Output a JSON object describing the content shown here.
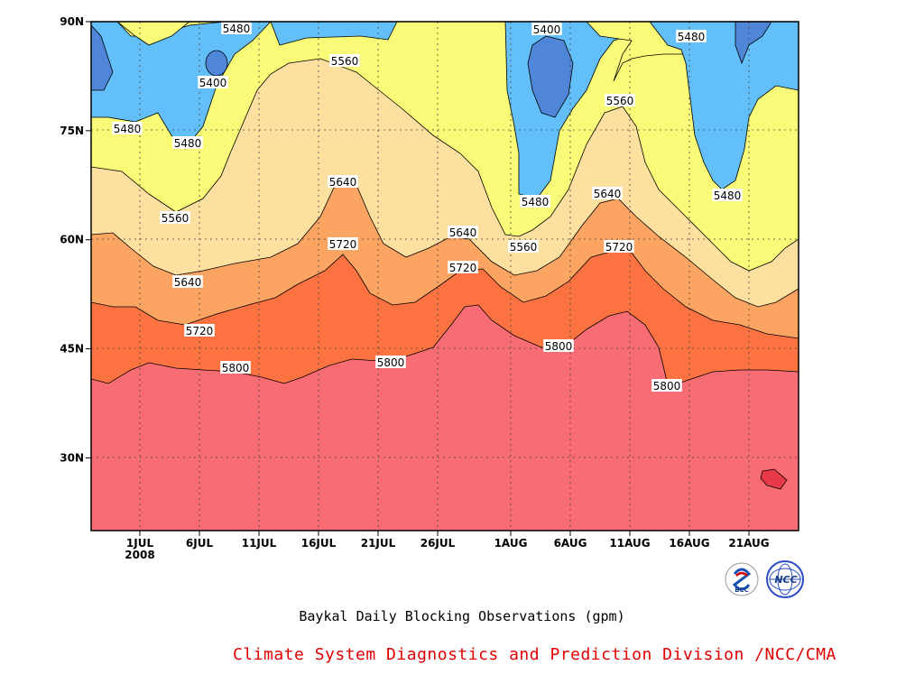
{
  "chart_data": {
    "type": "contour",
    "title": "Baykal Daily Blocking Observations (gpm)",
    "credit": "Climate System Diagnostics and Prediction Division /NCC/CMA",
    "x_ticks": [
      "1JUL",
      "6JUL",
      "11JUL",
      "16JUL",
      "21JUL",
      "26JUL",
      "1AUG",
      "6AUG",
      "11AUG",
      "16AUG",
      "21AUG"
    ],
    "x_subtitle": "2008",
    "y_ticks": [
      "30N",
      "45N",
      "60N",
      "75N",
      "90N"
    ],
    "y_values": [
      30,
      45,
      60,
      75,
      90
    ],
    "ylim": [
      20,
      90
    ],
    "contour_levels": [
      5400,
      5480,
      5560,
      5640,
      5720,
      5800
    ],
    "contour_labels": [
      "5480",
      "5400",
      "5480",
      "5480",
      "5560",
      "5560",
      "5640",
      "5640",
      "5720",
      "5720",
      "5800",
      "5800",
      "5400",
      "5480",
      "5560",
      "5640",
      "5720",
      "5800",
      "5480",
      "5480",
      "5560",
      "5640",
      "5720",
      "5800"
    ],
    "level_colors": {
      "below_5400": "#4f86d8",
      "5400_5480": "#62bffa",
      "5480_5560": "#fafa79",
      "5560_5640": "#fde0a0",
      "5640_5720": "#fca461",
      "5720_5800": "#fc7341",
      "above_5800": "#f86c74",
      "max_core": "#e63a4a"
    },
    "grid": true
  },
  "logos": [
    "BCC",
    "NCC"
  ]
}
